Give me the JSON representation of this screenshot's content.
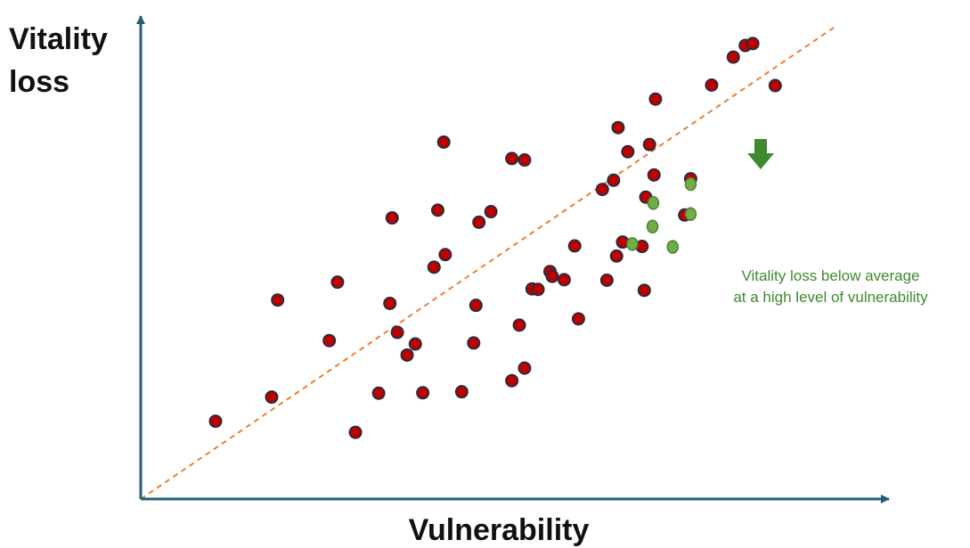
{
  "chart_data": {
    "type": "scatter",
    "ylabel_lines": [
      "Vitality",
      "loss"
    ],
    "xlabel": "Vulnerability",
    "annotation_lines": [
      "Vitality loss below average",
      "at a high level of vulnerability"
    ],
    "xlim": [
      0,
      100
    ],
    "ylim": [
      0,
      100
    ],
    "grid": false,
    "colors": {
      "axis": "#1f5f7a",
      "trend": "#ed7d31",
      "series_main": "#c00000",
      "series_highlight": "#70ad47",
      "arrow": "#3f8a2e"
    },
    "trend_line": {
      "x": [
        0,
        93
      ],
      "y": [
        0,
        98
      ]
    },
    "series": [
      {
        "x": [
          10.0,
          17.5,
          18.3,
          25.2,
          26.3,
          28.7,
          31.8,
          33.3,
          33.6,
          34.3,
          35.6,
          36.7,
          37.7,
          39.2,
          39.7,
          40.5,
          40.7,
          42.9,
          44.5,
          44.8,
          45.2,
          46.8,
          49.6,
          49.6,
          50.6,
          51.3,
          51.3,
          52.3,
          53.1,
          54.7,
          55.0,
          56.6,
          58.0,
          58.5,
          61.7,
          62.3,
          63.2,
          63.8,
          63.6,
          64.4,
          65.1,
          67.0,
          67.3,
          67.5,
          68.0,
          68.6,
          68.8,
          72.7,
          73.5,
          76.3,
          79.2,
          80.8,
          81.8,
          84.8
        ],
        "y": [
          16.1,
          21.1,
          41.2,
          32.8,
          44.9,
          13.8,
          21.9,
          40.5,
          58.2,
          34.5,
          29.8,
          32.1,
          22.0,
          48.0,
          59.8,
          73.9,
          50.6,
          22.2,
          32.3,
          40.1,
          57.3,
          59.5,
          24.5,
          70.5,
          36.0,
          70.2,
          27.1,
          43.5,
          43.4,
          47.1,
          46.1,
          45.4,
          52.4,
          37.3,
          64.1,
          45.3,
          66.0,
          76.9,
          50.3,
          53.2,
          71.9,
          52.3,
          43.2,
          62.5,
          73.4,
          67.1,
          82.8,
          58.8,
          66.3,
          85.7,
          91.5,
          93.9,
          94.3,
          85.6
        ],
        "color": "#c00000"
      },
      {
        "x": [
          65.7,
          68.5,
          68.4,
          71.1,
          73.5,
          73.5
        ],
        "y": [
          52.8,
          61.3,
          56.4,
          52.2,
          65.2,
          59.0
        ],
        "color": "#70ad47"
      }
    ]
  }
}
